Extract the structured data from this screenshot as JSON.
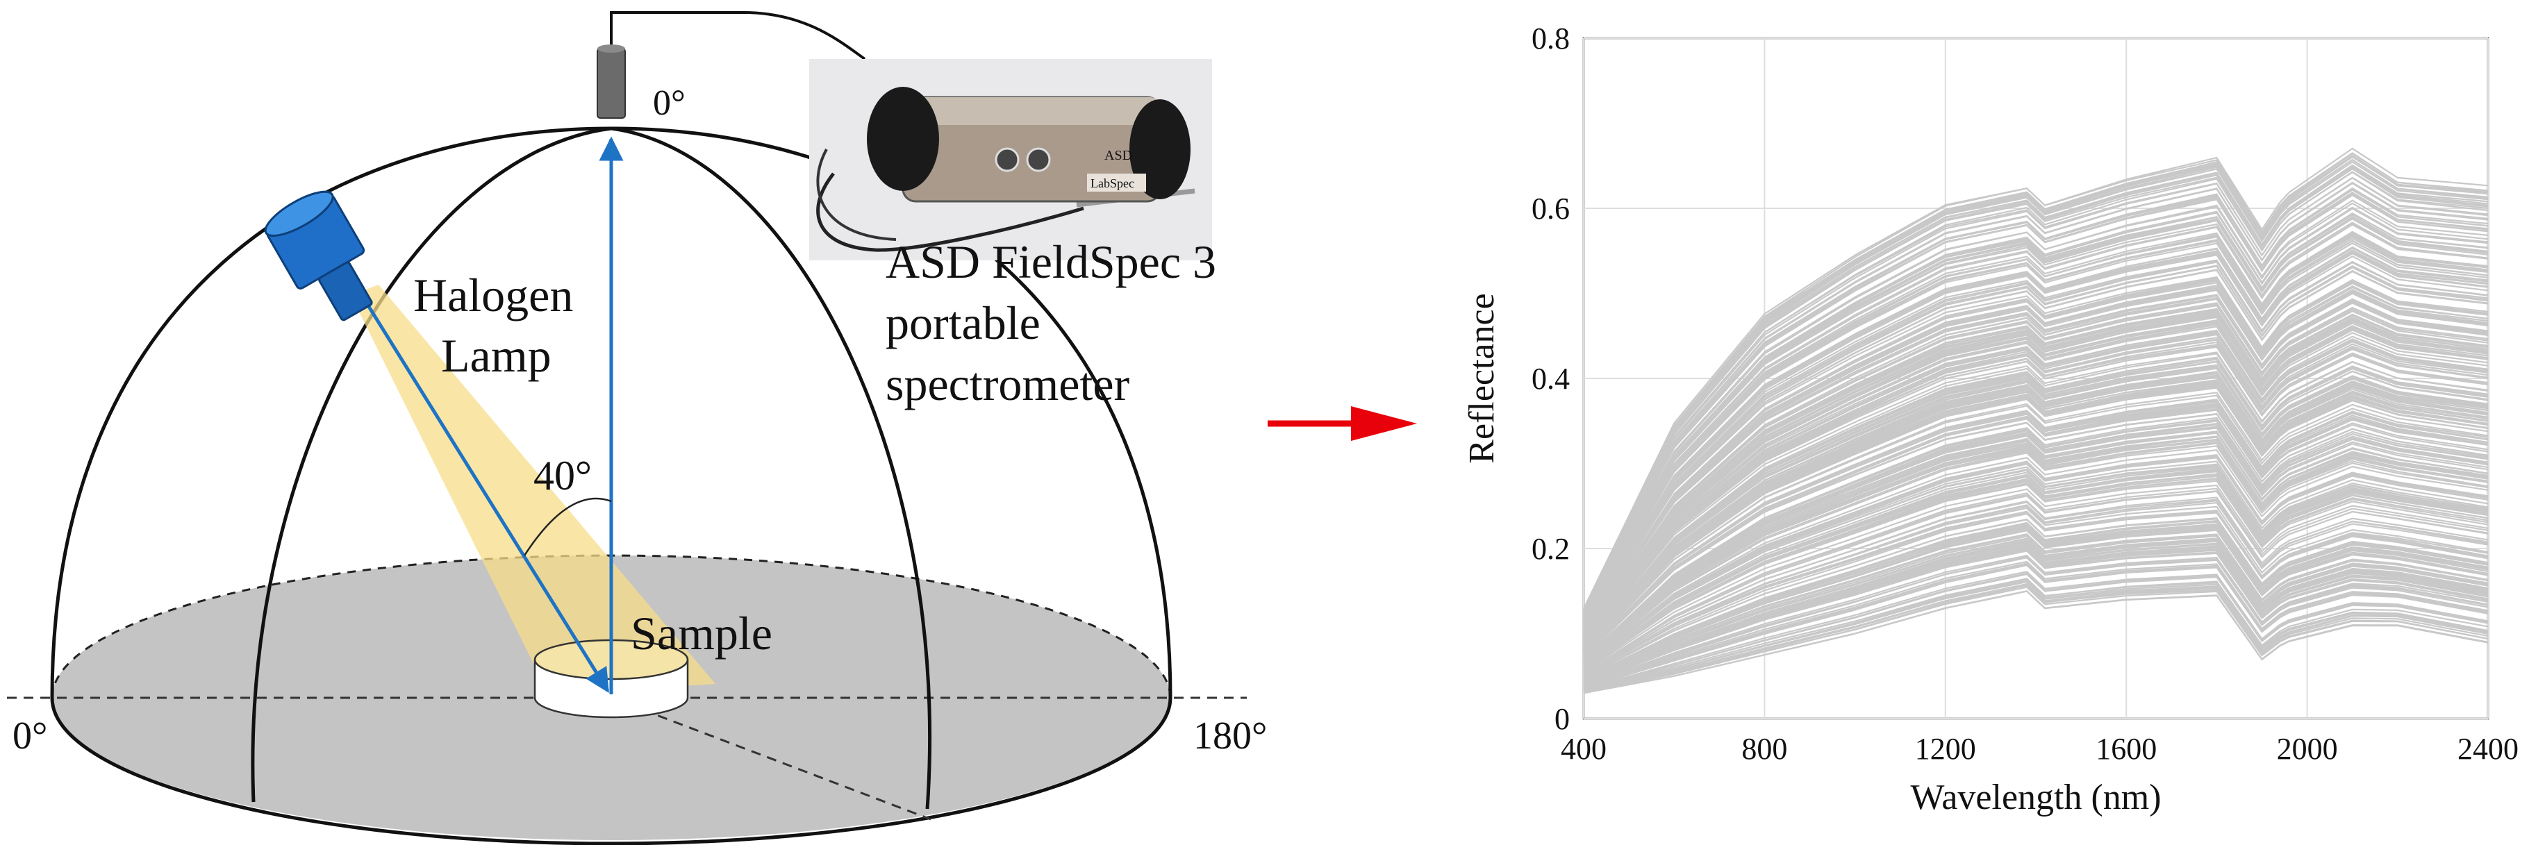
{
  "diagram": {
    "zenith_angle_label": "0°",
    "left_angle_label": "0°",
    "right_angle_label": "180°",
    "lamp_angle_label": "40°",
    "lamp_label_line1": "Halogen",
    "lamp_label_line2": "Lamp",
    "sample_label": "Sample",
    "spectrometer_label_line1": "ASD FieldSpec 3",
    "spectrometer_label_line2": "portable",
    "spectrometer_label_line3": "spectrometer",
    "device_brand": "ASD",
    "device_model": "LabSpec"
  },
  "colors": {
    "beam": "#1f73c4",
    "lamp_body": "#1f6fc8",
    "light_cone": "#f7dd8a",
    "sample_base": "#c4c4c4",
    "arrow": "#e8000b",
    "spectra": "#c8c8c8"
  },
  "chart_data": {
    "type": "line",
    "xlabel": "Wavelength (nm)",
    "ylabel": "Reflectance",
    "xlim": [
      400,
      2400
    ],
    "ylim": [
      0,
      0.8
    ],
    "xticks": [
      "400",
      "800",
      "1200",
      "1600",
      "2000",
      "2400"
    ],
    "yticks": [
      "0",
      "0.2",
      "0.4",
      "0.6",
      "0.8"
    ],
    "grid": true,
    "series_count_approx": 300,
    "series_envelope": {
      "x": [
        400,
        600,
        800,
        1000,
        1200,
        1380,
        1420,
        1600,
        1800,
        1900,
        1950,
        2100,
        2200,
        2400
      ],
      "upper": [
        0.13,
        0.35,
        0.48,
        0.55,
        0.61,
        0.63,
        0.61,
        0.64,
        0.665,
        0.58,
        0.62,
        0.675,
        0.64,
        0.63
      ],
      "lower": [
        0.03,
        0.05,
        0.075,
        0.1,
        0.13,
        0.15,
        0.13,
        0.14,
        0.145,
        0.07,
        0.09,
        0.11,
        0.11,
        0.09
      ]
    }
  }
}
